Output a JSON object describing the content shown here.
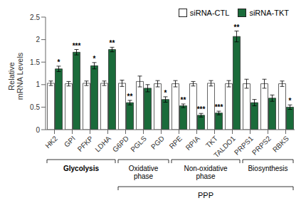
{
  "chart_data": {
    "type": "bar",
    "categories": [
      "HK2",
      "GPI",
      "PFKP",
      "LDHA",
      "G6PD",
      "PGLS",
      "PGD",
      "RPE",
      "RPIA",
      "TKT",
      "TALDO1",
      "PRPS1",
      "PRPS2",
      "RBKS"
    ],
    "series": [
      {
        "name": "siRNA-CTL",
        "color": "#ffffff",
        "values": [
          1.03,
          1.02,
          1.03,
          1.03,
          1.03,
          1.07,
          1.02,
          1.02,
          1.02,
          1.03,
          1.02,
          1.02,
          1.02,
          1.02
        ],
        "errors": [
          0.05,
          0.05,
          0.05,
          0.05,
          0.07,
          0.12,
          0.07,
          0.07,
          0.05,
          0.06,
          0.07,
          0.1,
          0.1,
          0.06
        ]
      },
      {
        "name": "siRNA-TKT",
        "color": "#1a6b3a",
        "values": [
          1.35,
          1.72,
          1.42,
          1.78,
          0.6,
          0.92,
          0.67,
          0.53,
          0.32,
          0.37,
          2.07,
          0.6,
          0.7,
          0.5
        ],
        "errors": [
          0.06,
          0.06,
          0.07,
          0.05,
          0.05,
          0.08,
          0.06,
          0.04,
          0.04,
          0.04,
          0.12,
          0.07,
          0.07,
          0.05
        ],
        "significance": [
          "*",
          "***",
          "*",
          "**",
          "**",
          null,
          "*",
          "**",
          "***",
          "***",
          "**",
          null,
          null,
          "*"
        ]
      }
    ],
    "ylabel": "Relative\nmRNA Levels",
    "ylim": [
      0,
      2.5
    ],
    "yticks": [
      0,
      0.5,
      1,
      1.5,
      2,
      2.5
    ],
    "grid": false,
    "legend": "upper right",
    "groups": [
      [
        {
          "label": "Glycolysis",
          "from": "HK2",
          "to": "LDHA"
        },
        {
          "label": "Oxidative\nphase",
          "from": "G6PD",
          "to": "PGD"
        },
        {
          "label": "Non-oxidative\nphase",
          "from": "RPE",
          "to": "TALDO1"
        },
        {
          "label": "Biosynthesis",
          "from": "PRPS1",
          "to": "RBKS"
        }
      ],
      [
        {
          "label": "PPP",
          "from": "G6PD",
          "to": "RBKS"
        }
      ]
    ]
  }
}
